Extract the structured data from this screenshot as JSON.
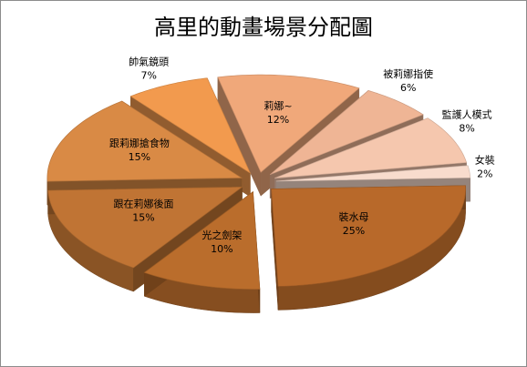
{
  "chart_data": {
    "type": "pie",
    "title": "高里的動畫場景分配圖",
    "slices": [
      {
        "label": "裝水母",
        "value": 25,
        "pct": "25%",
        "color": "#b8692a"
      },
      {
        "label": "光之劍架",
        "value": 10,
        "pct": "10%",
        "color": "#ba6d2c"
      },
      {
        "label": "跟在莉娜後面",
        "value": 15,
        "pct": "15%",
        "color": "#c07434"
      },
      {
        "label": "跟莉娜搶食物",
        "value": 15,
        "pct": "15%",
        "color": "#d98a45"
      },
      {
        "label": "帥氣鏡頭",
        "value": 7,
        "pct": "7%",
        "color": "#f29a4e"
      },
      {
        "label": "莉娜~",
        "value": 12,
        "pct": "12%",
        "color": "#f0a87a"
      },
      {
        "label": "被莉娜指使",
        "value": 6,
        "pct": "6%",
        "color": "#efb595"
      },
      {
        "label": "監護人模式",
        "value": 8,
        "pct": "8%",
        "color": "#f5c7ae"
      },
      {
        "label": "女裝",
        "value": 2,
        "pct": "2%",
        "color": "#f8dccd"
      }
    ]
  }
}
